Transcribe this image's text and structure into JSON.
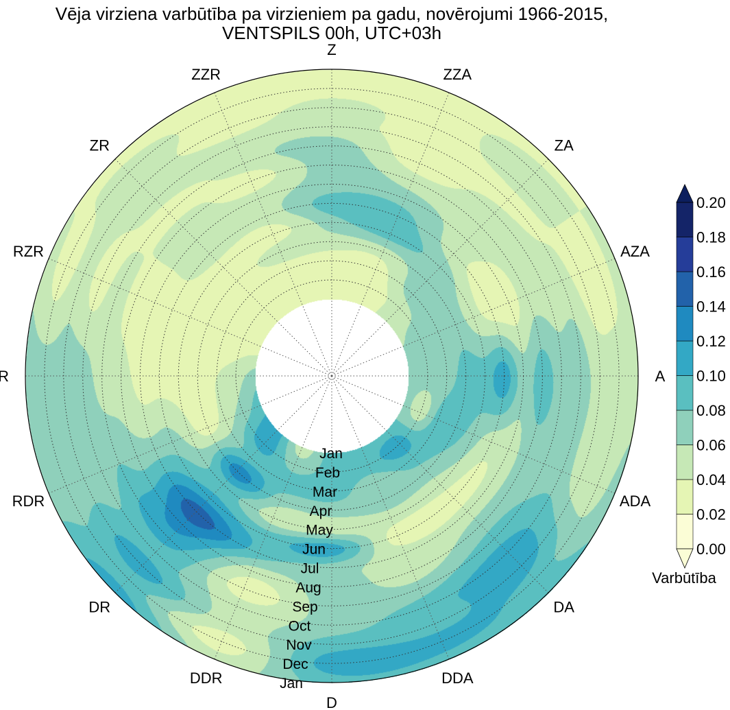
{
  "chart_data": {
    "type": "heatmap",
    "subtype": "polar-filled-contour",
    "title_line1": "Vēja virziena varbūtība pa virzieniem pa gadu, novērojumi 1966-2015,",
    "title_line2": "VENTSPILS 00h, UTC+03h",
    "directions": [
      "Z",
      "ZZA",
      "ZA",
      "AZA",
      "A",
      "ADA",
      "DA",
      "DDA",
      "D",
      "DDR",
      "DR",
      "RDR",
      "R",
      "RZR",
      "ZR",
      "ZZR"
    ],
    "months": [
      "Jan",
      "Feb",
      "Mar",
      "Apr",
      "May",
      "Jun",
      "Jul",
      "Aug",
      "Sep",
      "Oct",
      "Nov",
      "Dec",
      "Jan"
    ],
    "values": [
      [
        0.03,
        0.03,
        0.03,
        0.05,
        0.07,
        0.09,
        0.07,
        0.07,
        0.07,
        0.05,
        0.05,
        0.03,
        0.03
      ],
      [
        0.03,
        0.03,
        0.03,
        0.05,
        0.09,
        0.09,
        0.07,
        0.05,
        0.03,
        0.03,
        0.03,
        0.03,
        0.03
      ],
      [
        0.05,
        0.05,
        0.07,
        0.07,
        0.07,
        0.05,
        0.05,
        0.05,
        0.05,
        0.03,
        0.05,
        0.05,
        0.03
      ],
      [
        0.06,
        0.07,
        0.07,
        0.07,
        0.05,
        0.03,
        0.03,
        0.05,
        0.05,
        0.05,
        0.03,
        0.03,
        0.05
      ],
      [
        0.07,
        0.07,
        0.07,
        0.09,
        0.09,
        0.11,
        0.07,
        0.09,
        0.07,
        0.07,
        0.05,
        0.05,
        0.05
      ],
      [
        0.07,
        0.05,
        0.09,
        0.09,
        0.07,
        0.05,
        0.05,
        0.07,
        0.07,
        0.07,
        0.05,
        0.05,
        0.07
      ],
      [
        0.09,
        0.11,
        0.09,
        0.07,
        0.05,
        0.03,
        0.05,
        0.07,
        0.09,
        0.11,
        0.11,
        0.09,
        0.09
      ],
      [
        0.09,
        0.09,
        0.07,
        0.07,
        0.05,
        0.03,
        0.05,
        0.05,
        0.07,
        0.09,
        0.09,
        0.11,
        0.09
      ],
      [
        0.09,
        0.09,
        0.09,
        0.07,
        0.05,
        0.11,
        0.07,
        0.07,
        0.07,
        0.07,
        0.09,
        0.11,
        0.09
      ],
      [
        0.05,
        0.07,
        0.09,
        0.07,
        0.05,
        0.09,
        0.09,
        0.05,
        0.03,
        0.05,
        0.05,
        0.03,
        0.05
      ],
      [
        0.11,
        0.11,
        0.09,
        0.13,
        0.09,
        0.11,
        0.15,
        0.13,
        0.11,
        0.09,
        0.11,
        0.09,
        0.11
      ],
      [
        0.09,
        0.07,
        0.05,
        0.03,
        0.05,
        0.07,
        0.07,
        0.07,
        0.08,
        0.07,
        0.07,
        0.07,
        0.07
      ],
      [
        0.07,
        0.05,
        0.04,
        0.03,
        0.03,
        0.03,
        0.03,
        0.05,
        0.05,
        0.07,
        0.07,
        0.07,
        0.07
      ],
      [
        0.03,
        0.03,
        0.03,
        0.03,
        0.03,
        0.03,
        0.03,
        0.03,
        0.05,
        0.03,
        0.05,
        0.03,
        0.05
      ],
      [
        0.03,
        0.03,
        0.03,
        0.03,
        0.03,
        0.05,
        0.05,
        0.05,
        0.03,
        0.05,
        0.05,
        0.05,
        0.03
      ],
      [
        0.03,
        0.03,
        0.03,
        0.05,
        0.03,
        0.05,
        0.05,
        0.03,
        0.05,
        0.05,
        0.03,
        0.03,
        0.03
      ]
    ],
    "levels": [
      0.0,
      0.02,
      0.04,
      0.06,
      0.08,
      0.1,
      0.12,
      0.14,
      0.16,
      0.18,
      0.2
    ],
    "colorbar_ticks": [
      "0.00",
      "0.02",
      "0.04",
      "0.06",
      "0.08",
      "0.10",
      "0.12",
      "0.14",
      "0.16",
      "0.18",
      "0.20"
    ],
    "colorbar_label": "Varbūtība",
    "colors": [
      "#fbfdd6",
      "#e5f5b4",
      "#c6e8b6",
      "#8fd0bb",
      "#5abfc0",
      "#33a8c5",
      "#1f8ac0",
      "#2262aa",
      "#253d99",
      "#142468"
    ],
    "over_color": "#0c1f5e",
    "grid": true
  }
}
